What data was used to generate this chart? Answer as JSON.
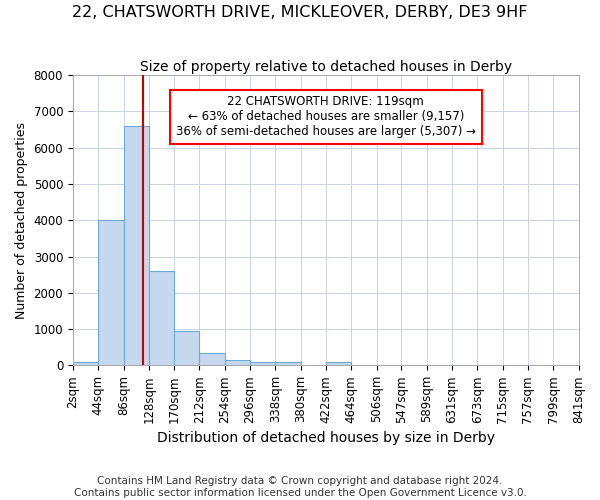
{
  "title1": "22, CHATSWORTH DRIVE, MICKLEOVER, DERBY, DE3 9HF",
  "title2": "Size of property relative to detached houses in Derby",
  "xlabel": "Distribution of detached houses by size in Derby",
  "ylabel": "Number of detached properties",
  "footer1": "Contains HM Land Registry data © Crown copyright and database right 2024.",
  "footer2": "Contains public sector information licensed under the Open Government Licence v3.0.",
  "bin_edges": [
    2,
    44,
    86,
    128,
    170,
    212,
    254,
    296,
    338,
    380,
    422,
    464,
    506,
    547,
    589,
    631,
    673,
    715,
    757,
    799,
    841
  ],
  "bin_counts": [
    100,
    4000,
    6600,
    2600,
    950,
    330,
    150,
    100,
    100,
    0,
    100,
    0,
    0,
    0,
    0,
    0,
    0,
    0,
    0,
    0
  ],
  "bar_color": "#c5d8ee",
  "bar_edgecolor": "#6aaad4",
  "marker_value": 119,
  "marker_color": "#cc0000",
  "ylim": [
    0,
    8000
  ],
  "annotation_text": "22 CHATSWORTH DRIVE: 119sqm\n← 63% of detached houses are smaller (9,157)\n36% of semi-detached houses are larger (5,307) →",
  "background_color": "#ffffff",
  "grid_color": "#c8d4e4",
  "title1_fontsize": 11.5,
  "title2_fontsize": 10,
  "xlabel_fontsize": 10,
  "ylabel_fontsize": 9,
  "tick_fontsize": 8.5,
  "footer_fontsize": 7.5,
  "annot_fontsize": 8.5
}
